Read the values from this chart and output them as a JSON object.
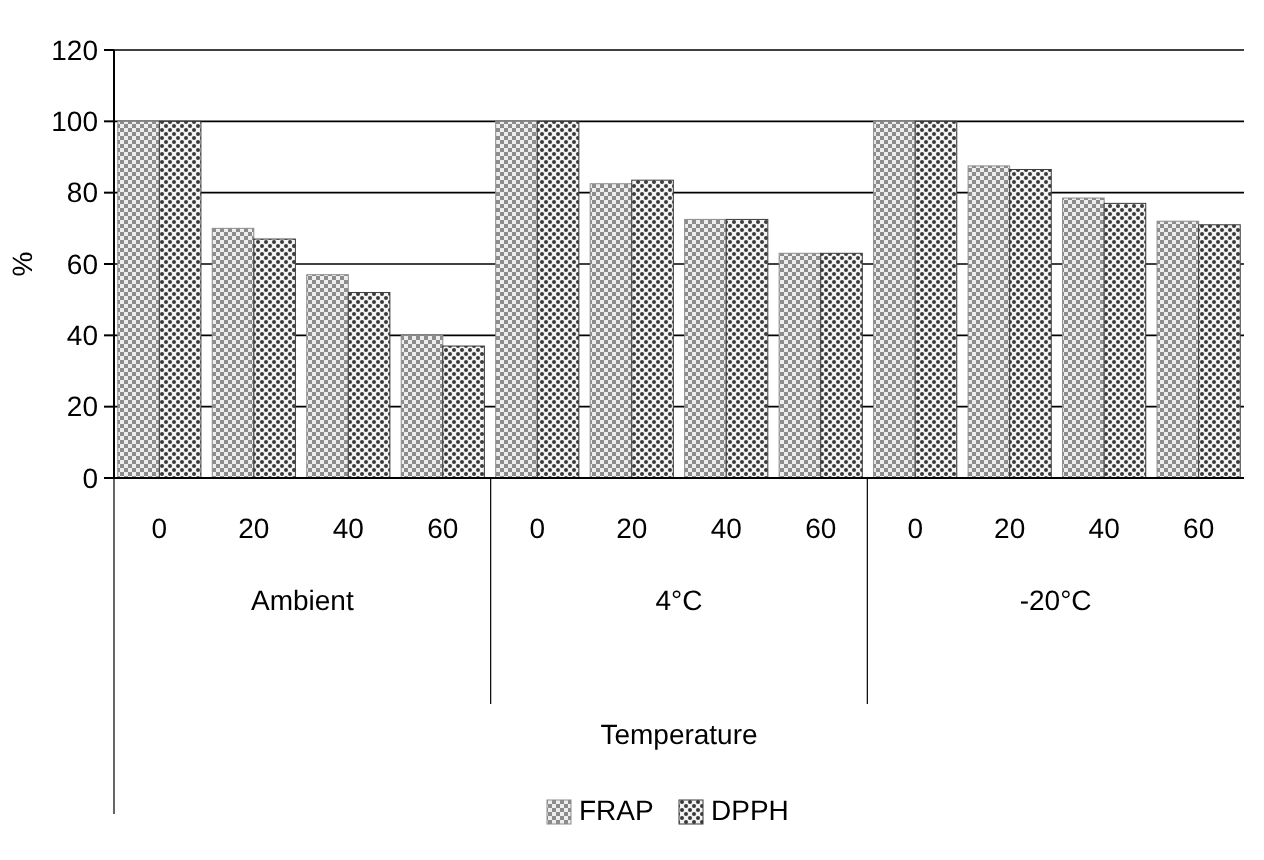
{
  "chart_data": {
    "type": "bar",
    "ylabel": "%",
    "categories": [
      "0",
      "20",
      "40",
      "60",
      "0",
      "20",
      "40",
      "60",
      "0",
      "20",
      "40",
      "60"
    ],
    "series": [
      {
        "name": "FRAP",
        "color": "#8c8c8c",
        "values": [
          100,
          70,
          57,
          40,
          100,
          82.5,
          72.5,
          63,
          100,
          87.5,
          78.5,
          72
        ]
      },
      {
        "name": "DPPH",
        "color": "#3a3a3a",
        "values": [
          100,
          67,
          52,
          37,
          100,
          83.5,
          72.5,
          63,
          100,
          86.5,
          77,
          71
        ]
      }
    ],
    "annotations": [
      "Ambient",
      "4°C",
      "-20°C",
      "Temperature"
    ],
    "ylim": [
      0,
      120
    ],
    "yticks": [
      0,
      20,
      40,
      60,
      80,
      100,
      120
    ],
    "grid": "y",
    "legend": "bottom"
  }
}
